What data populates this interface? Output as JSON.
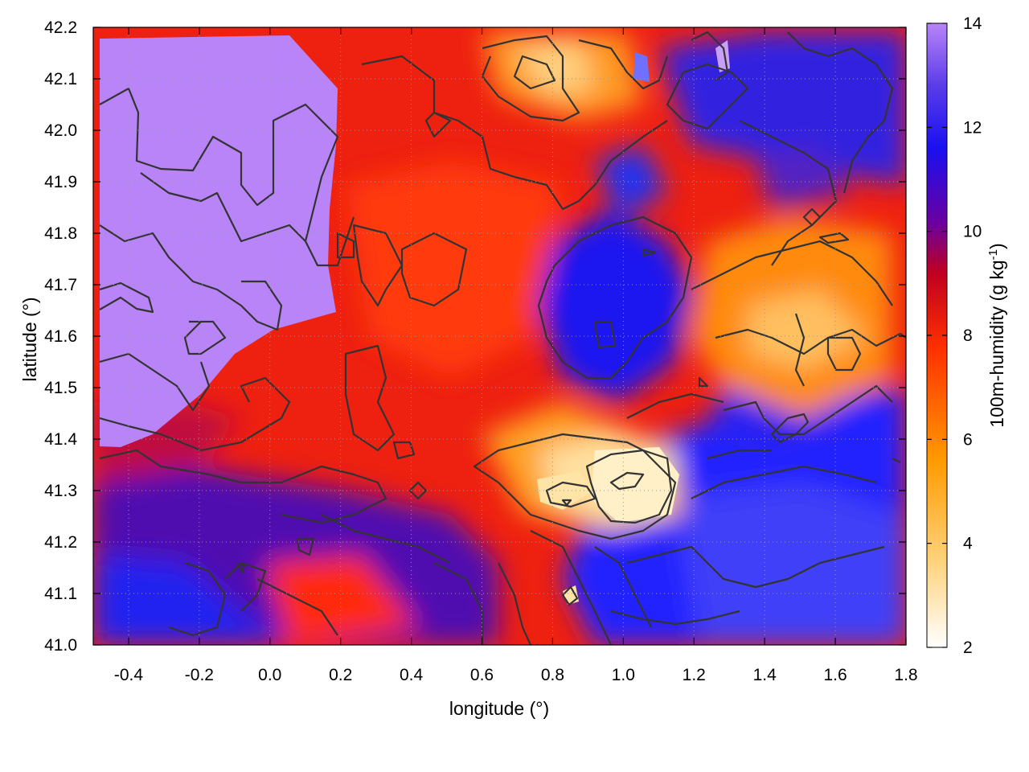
{
  "chart_data": {
    "type": "heatmap",
    "xlabel": "longitude (°)",
    "ylabel": "latitude (°)",
    "colorbar_label": "100m-humidity (g kg",
    "colorbar_label_sup": "-1",
    "colorbar_label_end": ")",
    "xlim": [
      -0.5,
      1.8
    ],
    "ylim": [
      41.0,
      42.2
    ],
    "clim": [
      2,
      14
    ],
    "x_ticks": [
      -0.4,
      -0.2,
      0.0,
      0.2,
      0.4,
      0.6,
      0.8,
      1.0,
      1.2,
      1.4,
      1.6,
      1.8
    ],
    "x_tick_labels": [
      "-0.4",
      "-0.2",
      "0.0",
      "0.2",
      "0.4",
      "0.6",
      "0.8",
      "1.0",
      "1.2",
      "1.4",
      "1.6",
      "1.8"
    ],
    "y_ticks": [
      41.0,
      41.1,
      41.2,
      41.3,
      41.4,
      41.5,
      41.6,
      41.7,
      41.8,
      41.9,
      42.0,
      42.1,
      42.2
    ],
    "y_tick_labels": [
      "41.0",
      "41.1",
      "41.2",
      "41.3",
      "41.4",
      "41.5",
      "41.6",
      "41.7",
      "41.8",
      "41.9",
      "42.0",
      "42.1",
      "42.2"
    ],
    "colorbar_ticks": [
      2,
      4,
      6,
      8,
      10,
      12,
      14
    ],
    "colorbar_tick_labels": [
      "2",
      "4",
      "6",
      "8",
      "10",
      "12",
      "14"
    ],
    "colormap": [
      "#ffffff",
      "#ffd27a",
      "#ff9a00",
      "#ff3000",
      "#c00020",
      "#6a00a0",
      "#1a10f0",
      "#b884f8"
    ],
    "grid": true,
    "field_regions": [
      {
        "feature": "saturated-high",
        "value": 14,
        "lon": [
          -0.49,
          0.19
        ],
        "lat": [
          41.37,
          42.17
        ]
      },
      {
        "feature": "moist-core",
        "value": 11,
        "lon": [
          0.73,
          1.0
        ],
        "lat": [
          41.55,
          41.8
        ]
      },
      {
        "feature": "moist-southeast",
        "value": 11.5,
        "lon": [
          1.0,
          1.8
        ],
        "lat": [
          41.0,
          41.35
        ]
      },
      {
        "feature": "dry-patch",
        "value": 2.5,
        "lon": [
          0.8,
          1.2
        ],
        "lat": [
          41.22,
          41.36
        ]
      },
      {
        "feature": "dry-northeast",
        "value": 4.5,
        "lon": [
          1.2,
          1.75
        ],
        "lat": [
          41.45,
          41.75
        ]
      },
      {
        "feature": "dry-north",
        "value": 4,
        "lon": [
          0.75,
          0.95
        ],
        "lat": [
          42.02,
          42.2
        ]
      },
      {
        "feature": "moderate-band",
        "value": 9.5,
        "lon": [
          -0.5,
          0.6
        ],
        "lat": [
          41.05,
          41.3
        ]
      }
    ]
  }
}
